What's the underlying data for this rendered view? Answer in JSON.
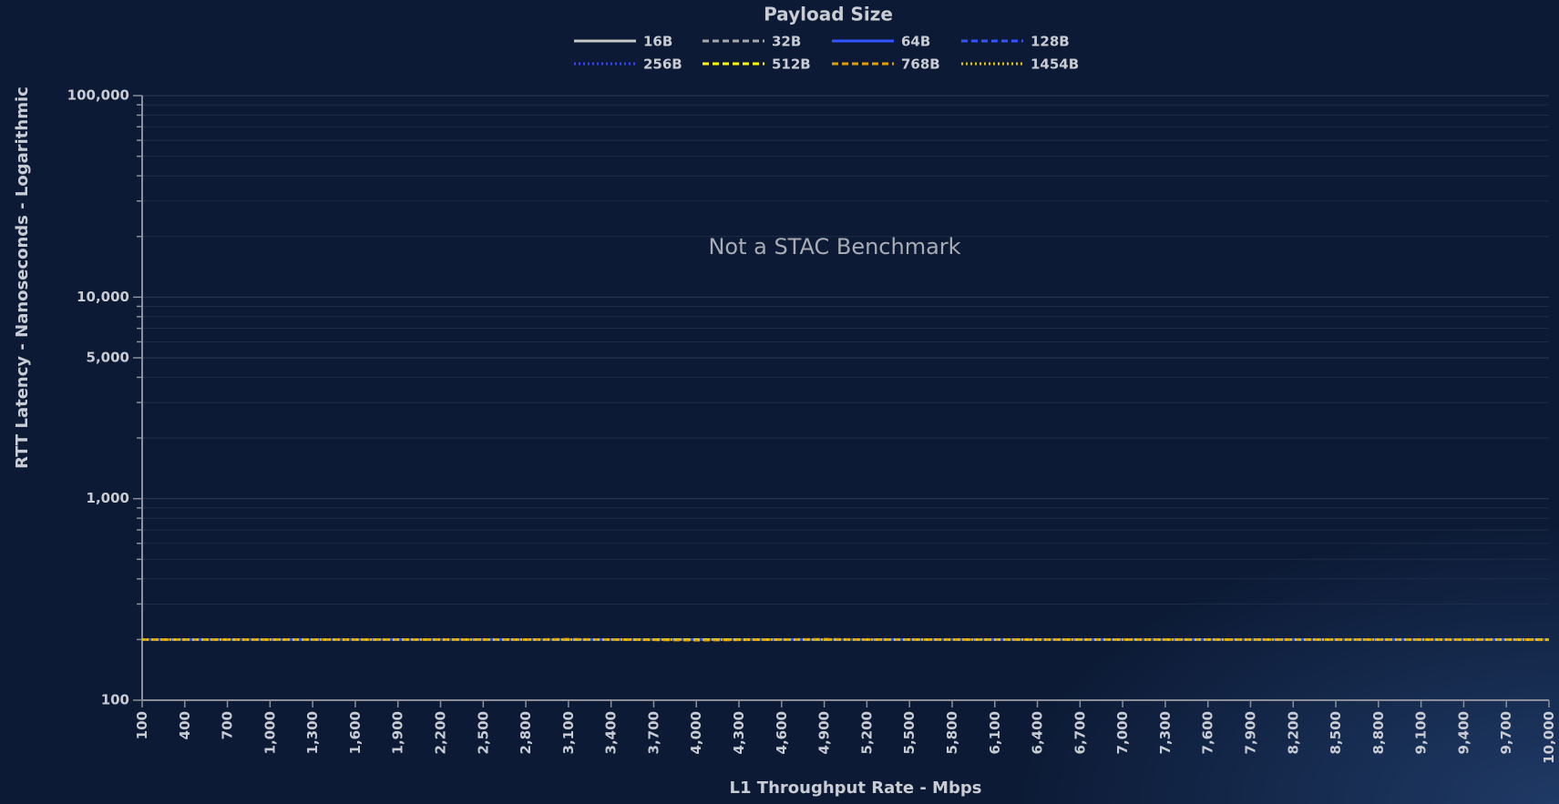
{
  "chart_data": {
    "type": "line",
    "legend_title": "Payload Size",
    "annotation": "Not a STAC Benchmark",
    "xlabel": "L1 Throughput Rate - Mbps",
    "ylabel": "RTT Latency - Nanoseconds - Logarithmic",
    "ylog": true,
    "grid": true,
    "legend": "top",
    "x": [
      100,
      400,
      700,
      1000,
      1300,
      1600,
      1900,
      2200,
      2500,
      2800,
      3100,
      3400,
      3700,
      4000,
      4300,
      4600,
      4900,
      5200,
      5500,
      5800,
      6100,
      6400,
      6700,
      7000,
      7300,
      7600,
      7900,
      8200,
      8500,
      8800,
      9100,
      9400,
      9700,
      10000
    ],
    "xlim": [
      100,
      10000
    ],
    "xticks": [
      100,
      400,
      700,
      {
        "value": 1000,
        "label": "1,000"
      },
      {
        "value": 1300,
        "label": "1,300"
      },
      {
        "value": 1600,
        "label": "1,600"
      },
      {
        "value": 1900,
        "label": "1,900"
      },
      {
        "value": 2200,
        "label": "2,200"
      },
      {
        "value": 2500,
        "label": "2,500"
      },
      {
        "value": 2800,
        "label": "2,800"
      },
      {
        "value": 3100,
        "label": "3,100"
      },
      {
        "value": 3400,
        "label": "3,400"
      },
      {
        "value": 3700,
        "label": "3,700"
      },
      {
        "value": 4000,
        "label": "4,000"
      },
      {
        "value": 4300,
        "label": "4,300"
      },
      {
        "value": 4600,
        "label": "4,600"
      },
      {
        "value": 4900,
        "label": "4,900"
      },
      {
        "value": 5200,
        "label": "5,200"
      },
      {
        "value": 5500,
        "label": "5,500"
      },
      {
        "value": 5800,
        "label": "5,800"
      },
      {
        "value": 6100,
        "label": "6,100"
      },
      {
        "value": 6400,
        "label": "6,400"
      },
      {
        "value": 6700,
        "label": "6,700"
      },
      {
        "value": 7000,
        "label": "7,000"
      },
      {
        "value": 7300,
        "label": "7,300"
      },
      {
        "value": 7600,
        "label": "7,600"
      },
      {
        "value": 7900,
        "label": "7,900"
      },
      {
        "value": 8200,
        "label": "8,200"
      },
      {
        "value": 8500,
        "label": "8,500"
      },
      {
        "value": 8800,
        "label": "8,800"
      },
      {
        "value": 9100,
        "label": "9,100"
      },
      {
        "value": 9400,
        "label": "9,400"
      },
      {
        "value": 9700,
        "label": "9,700"
      },
      {
        "value": 10000,
        "label": "10,000"
      }
    ],
    "ylim": [
      100,
      100000
    ],
    "yticks": [
      100,
      {
        "value": 1000,
        "label": "1,000"
      },
      {
        "value": 5000,
        "label": "5,000"
      },
      {
        "value": 10000,
        "label": "10,000"
      },
      {
        "value": 100000,
        "label": "100,000"
      }
    ],
    "yminorticks": [
      200,
      300,
      400,
      500,
      600,
      700,
      800,
      900,
      2000,
      3000,
      4000,
      6000,
      7000,
      8000,
      9000,
      20000,
      30000,
      40000,
      50000,
      60000,
      70000,
      80000,
      90000
    ],
    "series": [
      {
        "name": "16B",
        "color": "#c8c8c8",
        "dash": "solid",
        "values": [
          200,
          200,
          200,
          200,
          200,
          200,
          200,
          200,
          200,
          200,
          200,
          200,
          200,
          200,
          200,
          200,
          200,
          200,
          200,
          200,
          200,
          200,
          200,
          200,
          200,
          200,
          200,
          200,
          200,
          200,
          200,
          200,
          200,
          200
        ]
      },
      {
        "name": "32B",
        "color": "#a8a8a8",
        "dash": "dashed",
        "values": [
          200,
          200,
          200,
          200,
          200,
          200,
          200,
          200,
          200,
          200,
          200,
          200,
          200,
          200,
          200,
          200,
          200,
          200,
          200,
          200,
          200,
          200,
          200,
          200,
          200,
          200,
          200,
          200,
          200,
          200,
          200,
          200,
          200,
          200
        ]
      },
      {
        "name": "64B",
        "color": "#3355ff",
        "dash": "solid",
        "values": [
          200,
          200,
          200,
          200,
          200,
          200,
          200,
          200,
          200,
          200,
          200,
          200,
          200,
          200,
          200,
          200,
          200,
          200,
          200,
          200,
          200,
          200,
          200,
          200,
          200,
          200,
          200,
          200,
          200,
          200,
          200,
          200,
          200,
          200
        ]
      },
      {
        "name": "128B",
        "color": "#3355ff",
        "dash": "dashed",
        "values": [
          200,
          200,
          200,
          200,
          200,
          200,
          200,
          200,
          200,
          200,
          200,
          200,
          200,
          200,
          200,
          200,
          200,
          200,
          200,
          200,
          200,
          200,
          200,
          200,
          200,
          200,
          200,
          200,
          200,
          200,
          200,
          200,
          200,
          200
        ]
      },
      {
        "name": "256B",
        "color": "#3344ff",
        "dash": "dotted",
        "values": [
          200,
          200,
          200,
          200,
          200,
          200,
          200,
          200,
          200,
          200,
          200,
          200,
          200,
          200,
          200,
          200,
          200,
          200,
          200,
          200,
          200,
          200,
          200,
          200,
          200,
          200,
          200,
          200,
          200,
          200,
          200,
          200,
          200,
          200
        ]
      },
      {
        "name": "512B",
        "color": "#ffff00",
        "dash": "dashed",
        "values": [
          200,
          200,
          200,
          200,
          200,
          200,
          200,
          200,
          200,
          200,
          200,
          200,
          200,
          200,
          200,
          200,
          200,
          200,
          200,
          200,
          200,
          200,
          200,
          200,
          200,
          200,
          200,
          200,
          200,
          200,
          200,
          200,
          200,
          200
        ]
      },
      {
        "name": "768B",
        "color": "#e0a000",
        "dash": "dashed",
        "values": [
          200,
          200,
          200,
          200,
          200,
          200,
          200,
          200,
          200,
          200,
          201,
          200,
          199,
          198,
          199,
          200,
          201,
          200,
          200,
          200,
          200,
          200,
          200,
          200,
          200,
          200,
          200,
          200,
          200,
          200,
          200,
          200,
          200,
          199
        ]
      },
      {
        "name": "1454B",
        "color": "#e8c400",
        "dash": "dotted",
        "values": [
          200,
          200,
          200,
          200,
          200,
          200,
          200,
          200,
          200,
          200,
          200,
          200,
          200,
          200,
          200,
          200,
          200,
          200,
          200,
          200,
          200,
          200,
          200,
          200,
          200,
          200,
          200,
          200,
          200,
          200,
          200,
          200,
          200,
          200
        ]
      }
    ]
  }
}
